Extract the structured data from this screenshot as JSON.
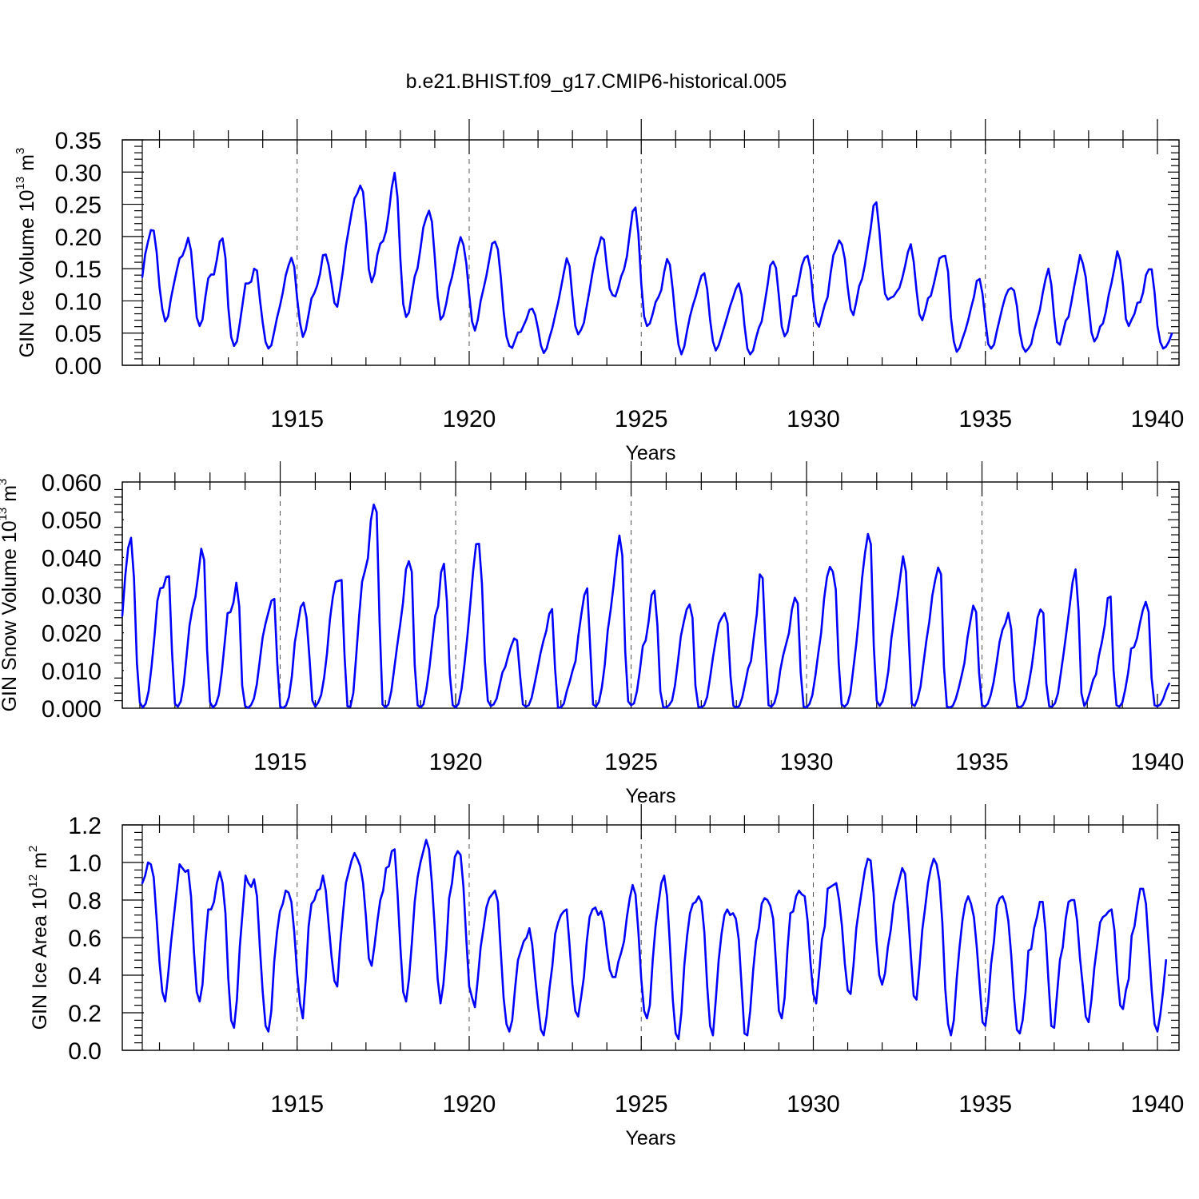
{
  "figure": {
    "title": "b.e21.BHIST.f09_g17.CMIP6-historical.005",
    "line_color": "#0000ff"
  },
  "chart_data": [
    {
      "type": "line",
      "id": "ice-volume",
      "title": "b.e21.BHIST.f09_g17.CMIP6-historical.005",
      "xlabel": "Years",
      "ylabel_main": "GIN Ice Volume 10",
      "ylabel_exp": "13",
      "ylabel_unit": " m",
      "ylabel_unit_exp": "3",
      "xlim": [
        1910.5,
        1940.0
      ],
      "ylim": [
        0.0,
        0.35
      ],
      "x_ticks": [
        "1915",
        "1920",
        "1925",
        "1930",
        "1935",
        "1940"
      ],
      "y_ticks": [
        "0.00",
        "0.05",
        "0.10",
        "0.15",
        "0.20",
        "0.25",
        "0.30",
        "0.35"
      ],
      "y_tick_values": [
        0.0,
        0.05,
        0.1,
        0.15,
        0.2,
        0.25,
        0.3,
        0.35
      ],
      "x_start": 1910.5,
      "x_step": 0.0833333,
      "values": [
        0.137,
        0.172,
        0.192,
        0.21,
        0.209,
        0.176,
        0.122,
        0.087,
        0.068,
        0.076,
        0.104,
        0.126,
        0.147,
        0.166,
        0.17,
        0.182,
        0.198,
        0.178,
        0.128,
        0.074,
        0.061,
        0.071,
        0.106,
        0.135,
        0.141,
        0.141,
        0.164,
        0.192,
        0.197,
        0.167,
        0.09,
        0.044,
        0.03,
        0.037,
        0.065,
        0.096,
        0.127,
        0.127,
        0.13,
        0.15,
        0.147,
        0.103,
        0.066,
        0.036,
        0.026,
        0.031,
        0.052,
        0.074,
        0.092,
        0.113,
        0.139,
        0.155,
        0.167,
        0.153,
        0.104,
        0.066,
        0.044,
        0.055,
        0.079,
        0.104,
        0.112,
        0.124,
        0.142,
        0.171,
        0.172,
        0.155,
        0.127,
        0.097,
        0.091,
        0.118,
        0.148,
        0.185,
        0.211,
        0.237,
        0.259,
        0.267,
        0.279,
        0.269,
        0.218,
        0.149,
        0.129,
        0.142,
        0.172,
        0.189,
        0.193,
        0.208,
        0.238,
        0.276,
        0.299,
        0.261,
        0.165,
        0.095,
        0.075,
        0.082,
        0.111,
        0.138,
        0.151,
        0.181,
        0.214,
        0.229,
        0.24,
        0.223,
        0.168,
        0.106,
        0.071,
        0.077,
        0.096,
        0.121,
        0.137,
        0.159,
        0.182,
        0.199,
        0.187,
        0.158,
        0.11,
        0.068,
        0.054,
        0.071,
        0.1,
        0.119,
        0.139,
        0.164,
        0.189,
        0.192,
        0.18,
        0.138,
        0.084,
        0.045,
        0.03,
        0.027,
        0.039,
        0.051,
        0.052,
        0.062,
        0.072,
        0.086,
        0.088,
        0.078,
        0.057,
        0.031,
        0.019,
        0.026,
        0.043,
        0.058,
        0.078,
        0.097,
        0.12,
        0.144,
        0.166,
        0.154,
        0.105,
        0.061,
        0.048,
        0.055,
        0.066,
        0.092,
        0.117,
        0.144,
        0.167,
        0.182,
        0.199,
        0.195,
        0.153,
        0.119,
        0.109,
        0.107,
        0.121,
        0.138,
        0.149,
        0.169,
        0.205,
        0.239,
        0.245,
        0.204,
        0.127,
        0.076,
        0.061,
        0.065,
        0.08,
        0.098,
        0.106,
        0.117,
        0.145,
        0.165,
        0.156,
        0.117,
        0.069,
        0.032,
        0.017,
        0.029,
        0.054,
        0.076,
        0.093,
        0.107,
        0.124,
        0.139,
        0.143,
        0.118,
        0.071,
        0.037,
        0.023,
        0.031,
        0.046,
        0.061,
        0.076,
        0.092,
        0.105,
        0.119,
        0.127,
        0.109,
        0.062,
        0.026,
        0.017,
        0.023,
        0.042,
        0.058,
        0.068,
        0.095,
        0.123,
        0.155,
        0.161,
        0.151,
        0.107,
        0.06,
        0.045,
        0.052,
        0.077,
        0.107,
        0.108,
        0.131,
        0.155,
        0.167,
        0.17,
        0.149,
        0.101,
        0.067,
        0.06,
        0.077,
        0.094,
        0.106,
        0.142,
        0.171,
        0.181,
        0.194,
        0.187,
        0.165,
        0.121,
        0.087,
        0.078,
        0.099,
        0.123,
        0.134,
        0.156,
        0.184,
        0.212,
        0.248,
        0.253,
        0.21,
        0.155,
        0.111,
        0.102,
        0.105,
        0.107,
        0.114,
        0.12,
        0.135,
        0.154,
        0.176,
        0.188,
        0.161,
        0.116,
        0.079,
        0.07,
        0.085,
        0.104,
        0.108,
        0.126,
        0.146,
        0.166,
        0.169,
        0.17,
        0.145,
        0.074,
        0.037,
        0.021,
        0.027,
        0.041,
        0.054,
        0.07,
        0.089,
        0.106,
        0.131,
        0.134,
        0.111,
        0.07,
        0.033,
        0.026,
        0.032,
        0.053,
        0.072,
        0.091,
        0.107,
        0.117,
        0.12,
        0.116,
        0.092,
        0.051,
        0.029,
        0.021,
        0.026,
        0.033,
        0.054,
        0.07,
        0.086,
        0.112,
        0.134,
        0.15,
        0.125,
        0.075,
        0.036,
        0.032,
        0.05,
        0.069,
        0.075,
        0.098,
        0.123,
        0.146,
        0.171,
        0.158,
        0.137,
        0.093,
        0.051,
        0.037,
        0.044,
        0.06,
        0.065,
        0.083,
        0.109,
        0.128,
        0.151,
        0.177,
        0.163,
        0.124,
        0.072,
        0.061,
        0.071,
        0.08,
        0.097,
        0.098,
        0.113,
        0.14,
        0.149,
        0.149,
        0.113,
        0.061,
        0.036,
        0.026,
        0.029,
        0.037,
        0.049
      ]
    },
    {
      "type": "line",
      "id": "snow-volume",
      "xlabel": "Years",
      "ylabel_main": "GIN Snow Volume 10",
      "ylabel_exp": "13",
      "ylabel_unit": " m",
      "ylabel_unit_exp": "3",
      "xlim": [
        1910.5,
        1940.0
      ],
      "ylim": [
        0.0,
        0.06
      ],
      "x_ticks": [
        "1915",
        "1920",
        "1925",
        "1930",
        "1935",
        "1940"
      ],
      "y_ticks": [
        "0.000",
        "0.010",
        "0.020",
        "0.030",
        "0.040",
        "0.050",
        "0.060"
      ],
      "y_tick_values": [
        0.0,
        0.01,
        0.02,
        0.03,
        0.04,
        0.05,
        0.06
      ],
      "x_start": 1910.5,
      "x_step": 0.0833333,
      "values": [
        0.0245,
        0.035,
        0.0425,
        0.0452,
        0.0345,
        0.012,
        0.0015,
        0.0002,
        0.0012,
        0.0045,
        0.011,
        0.019,
        0.0285,
        0.0318,
        0.032,
        0.0348,
        0.035,
        0.015,
        0.0012,
        0.0004,
        0.0018,
        0.0063,
        0.014,
        0.022,
        0.0265,
        0.0295,
        0.0355,
        0.0423,
        0.0393,
        0.0155,
        0.0016,
        0.0002,
        0.001,
        0.0035,
        0.0094,
        0.0172,
        0.0252,
        0.0255,
        0.028,
        0.0333,
        0.027,
        0.006,
        0.0006,
        0.0001,
        0.0008,
        0.0025,
        0.0063,
        0.0125,
        0.0188,
        0.0225,
        0.0255,
        0.0285,
        0.029,
        0.012,
        0.0004,
        0.0001,
        0.0007,
        0.003,
        0.0085,
        0.0175,
        0.022,
        0.0268,
        0.028,
        0.024,
        0.0135,
        0.002,
        0.0004,
        0.0015,
        0.0035,
        0.008,
        0.0145,
        0.0235,
        0.0295,
        0.0335,
        0.0338,
        0.034,
        0.014,
        0.0005,
        0.0004,
        0.004,
        0.014,
        0.0245,
        0.0335,
        0.0365,
        0.0398,
        0.0498,
        0.054,
        0.052,
        0.0225,
        0.001,
        0.0002,
        0.001,
        0.0045,
        0.0105,
        0.0165,
        0.022,
        0.028,
        0.0368,
        0.039,
        0.0362,
        0.0115,
        0.0008,
        0.0002,
        0.001,
        0.005,
        0.0105,
        0.0175,
        0.0245,
        0.027,
        0.036,
        0.0383,
        0.0285,
        0.009,
        0.0008,
        0.0002,
        0.0012,
        0.005,
        0.0115,
        0.019,
        0.0275,
        0.0365,
        0.0435,
        0.0436,
        0.033,
        0.0125,
        0.002,
        0.0006,
        0.001,
        0.0025,
        0.006,
        0.0095,
        0.011,
        0.014,
        0.0165,
        0.0185,
        0.018,
        0.009,
        0.001,
        0.0004,
        0.0008,
        0.0028,
        0.0065,
        0.0104,
        0.0145,
        0.0178,
        0.0205,
        0.025,
        0.0263,
        0.0105,
        0.0002,
        0.0002,
        0.0012,
        0.0045,
        0.007,
        0.01,
        0.0125,
        0.0195,
        0.025,
        0.03,
        0.0318,
        0.0165,
        0.001,
        0.0004,
        0.0017,
        0.0055,
        0.0115,
        0.0205,
        0.026,
        0.0325,
        0.04,
        0.0458,
        0.0405,
        0.015,
        0.0018,
        0.0008,
        0.0013,
        0.0045,
        0.01,
        0.0165,
        0.018,
        0.023,
        0.03,
        0.0312,
        0.022,
        0.0045,
        0.0003,
        0.0002,
        0.0008,
        0.002,
        0.006,
        0.0122,
        0.019,
        0.0228,
        0.0262,
        0.0275,
        0.024,
        0.006,
        0.0004,
        0.0002,
        0.0008,
        0.003,
        0.008,
        0.0135,
        0.0182,
        0.0225,
        0.024,
        0.0252,
        0.0225,
        0.0085,
        0.0006,
        0.0002,
        0.0006,
        0.0028,
        0.0065,
        0.0105,
        0.0125,
        0.019,
        0.025,
        0.0355,
        0.0345,
        0.0165,
        0.0008,
        0.0004,
        0.0014,
        0.0042,
        0.01,
        0.014,
        0.017,
        0.02,
        0.0262,
        0.0293,
        0.0278,
        0.0095,
        0.0004,
        0.0002,
        0.0011,
        0.0035,
        0.0085,
        0.0145,
        0.02,
        0.029,
        0.0348,
        0.0375,
        0.0362,
        0.0315,
        0.012,
        0.001,
        0.0004,
        0.0012,
        0.004,
        0.0105,
        0.017,
        0.025,
        0.0345,
        0.0412,
        0.0462,
        0.0435,
        0.0165,
        0.002,
        0.0006,
        0.0018,
        0.005,
        0.01,
        0.0185,
        0.0238,
        0.0288,
        0.0345,
        0.0403,
        0.0362,
        0.018,
        0.0012,
        0.0006,
        0.0025,
        0.0058,
        0.012,
        0.018,
        0.023,
        0.0298,
        0.034,
        0.0373,
        0.0355,
        0.011,
        0.0004,
        0.0002,
        0.0006,
        0.0024,
        0.0052,
        0.0085,
        0.012,
        0.0185,
        0.023,
        0.0272,
        0.0255,
        0.0095,
        0.0008,
        0.0004,
        0.0012,
        0.0035,
        0.007,
        0.012,
        0.0175,
        0.0208,
        0.0225,
        0.0253,
        0.021,
        0.0075,
        0.0006,
        0.0002,
        0.0008,
        0.0025,
        0.0065,
        0.011,
        0.017,
        0.024,
        0.0262,
        0.0252,
        0.0065,
        0.0005,
        0.0004,
        0.0014,
        0.004,
        0.0095,
        0.015,
        0.021,
        0.0272,
        0.0335,
        0.0368,
        0.026,
        0.004,
        0.0006,
        0.002,
        0.0045,
        0.0075,
        0.009,
        0.014,
        0.0175,
        0.022,
        0.0292,
        0.0296,
        0.01,
        0.0008,
        0.0004,
        0.0015,
        0.005,
        0.0095,
        0.0158,
        0.0162,
        0.0185,
        0.0225,
        0.026,
        0.0282,
        0.0255,
        0.008,
        0.0008,
        0.0005,
        0.001,
        0.0025,
        0.0048,
        0.0065
      ]
    },
    {
      "type": "line",
      "id": "ice-area",
      "xlabel": "Years",
      "ylabel_main": "GIN Ice Area 10",
      "ylabel_exp": "12",
      "ylabel_unit": " m",
      "ylabel_unit_exp": "2",
      "xlim": [
        1910.5,
        1940.0
      ],
      "ylim": [
        0.0,
        1.2
      ],
      "x_ticks": [
        "1915",
        "1920",
        "1925",
        "1930",
        "1935",
        "1940"
      ],
      "y_ticks": [
        "0.0",
        "0.2",
        "0.4",
        "0.6",
        "0.8",
        "1.0",
        "1.2"
      ],
      "y_tick_values": [
        0.0,
        0.2,
        0.4,
        0.6,
        0.8,
        1.0,
        1.2
      ],
      "x_start": 1910.5,
      "x_step": 0.0833333,
      "values": [
        0.89,
        0.93,
        1.0,
        0.99,
        0.92,
        0.7,
        0.47,
        0.31,
        0.26,
        0.4,
        0.57,
        0.71,
        0.85,
        0.99,
        0.97,
        0.95,
        0.96,
        0.82,
        0.53,
        0.31,
        0.26,
        0.35,
        0.58,
        0.75,
        0.75,
        0.79,
        0.89,
        0.95,
        0.89,
        0.73,
        0.38,
        0.16,
        0.12,
        0.27,
        0.55,
        0.74,
        0.93,
        0.89,
        0.87,
        0.91,
        0.82,
        0.55,
        0.31,
        0.13,
        0.1,
        0.21,
        0.47,
        0.63,
        0.74,
        0.78,
        0.85,
        0.84,
        0.79,
        0.63,
        0.41,
        0.25,
        0.17,
        0.38,
        0.66,
        0.78,
        0.8,
        0.85,
        0.86,
        0.93,
        0.85,
        0.67,
        0.5,
        0.37,
        0.34,
        0.56,
        0.73,
        0.89,
        0.95,
        1.01,
        1.05,
        1.02,
        0.98,
        0.89,
        0.71,
        0.49,
        0.45,
        0.56,
        0.69,
        0.8,
        0.85,
        0.97,
        0.98,
        1.06,
        1.07,
        0.84,
        0.55,
        0.31,
        0.26,
        0.38,
        0.57,
        0.79,
        0.92,
        1.0,
        1.06,
        1.12,
        1.07,
        0.89,
        0.65,
        0.38,
        0.25,
        0.35,
        0.54,
        0.81,
        0.89,
        1.03,
        1.06,
        1.04,
        0.87,
        0.59,
        0.34,
        0.28,
        0.23,
        0.38,
        0.55,
        0.65,
        0.76,
        0.81,
        0.83,
        0.85,
        0.79,
        0.53,
        0.28,
        0.14,
        0.1,
        0.16,
        0.33,
        0.48,
        0.53,
        0.58,
        0.6,
        0.65,
        0.56,
        0.39,
        0.24,
        0.11,
        0.08,
        0.18,
        0.33,
        0.45,
        0.62,
        0.68,
        0.72,
        0.74,
        0.75,
        0.56,
        0.35,
        0.21,
        0.18,
        0.28,
        0.39,
        0.58,
        0.71,
        0.75,
        0.76,
        0.72,
        0.74,
        0.68,
        0.54,
        0.43,
        0.39,
        0.39,
        0.47,
        0.52,
        0.58,
        0.71,
        0.81,
        0.88,
        0.83,
        0.63,
        0.38,
        0.21,
        0.17,
        0.24,
        0.48,
        0.66,
        0.78,
        0.89,
        0.93,
        0.82,
        0.56,
        0.27,
        0.09,
        0.06,
        0.2,
        0.45,
        0.61,
        0.73,
        0.78,
        0.79,
        0.82,
        0.79,
        0.63,
        0.34,
        0.13,
        0.08,
        0.27,
        0.48,
        0.62,
        0.72,
        0.75,
        0.72,
        0.73,
        0.7,
        0.59,
        0.34,
        0.09,
        0.08,
        0.21,
        0.42,
        0.58,
        0.65,
        0.78,
        0.81,
        0.8,
        0.77,
        0.7,
        0.46,
        0.21,
        0.17,
        0.28,
        0.54,
        0.73,
        0.74,
        0.82,
        0.85,
        0.83,
        0.82,
        0.69,
        0.47,
        0.3,
        0.25,
        0.41,
        0.59,
        0.66,
        0.86,
        0.87,
        0.88,
        0.89,
        0.8,
        0.66,
        0.46,
        0.32,
        0.3,
        0.45,
        0.65,
        0.76,
        0.86,
        0.96,
        1.02,
        1.01,
        0.84,
        0.58,
        0.4,
        0.35,
        0.41,
        0.55,
        0.64,
        0.78,
        0.85,
        0.91,
        0.97,
        0.94,
        0.74,
        0.51,
        0.29,
        0.27,
        0.44,
        0.64,
        0.76,
        0.89,
        0.97,
        1.02,
        0.99,
        0.9,
        0.68,
        0.33,
        0.14,
        0.08,
        0.16,
        0.38,
        0.55,
        0.69,
        0.78,
        0.82,
        0.78,
        0.71,
        0.55,
        0.35,
        0.15,
        0.13,
        0.26,
        0.46,
        0.58,
        0.77,
        0.81,
        0.82,
        0.78,
        0.69,
        0.51,
        0.28,
        0.11,
        0.09,
        0.16,
        0.31,
        0.53,
        0.54,
        0.65,
        0.71,
        0.79,
        0.79,
        0.63,
        0.37,
        0.13,
        0.12,
        0.3,
        0.48,
        0.55,
        0.7,
        0.79,
        0.8,
        0.8,
        0.69,
        0.49,
        0.34,
        0.18,
        0.15,
        0.27,
        0.44,
        0.56,
        0.68,
        0.71,
        0.72,
        0.74,
        0.75,
        0.64,
        0.41,
        0.24,
        0.22,
        0.32,
        0.38,
        0.61,
        0.66,
        0.77,
        0.86,
        0.86,
        0.78,
        0.55,
        0.32,
        0.14,
        0.1,
        0.19,
        0.32,
        0.48
      ]
    }
  ]
}
